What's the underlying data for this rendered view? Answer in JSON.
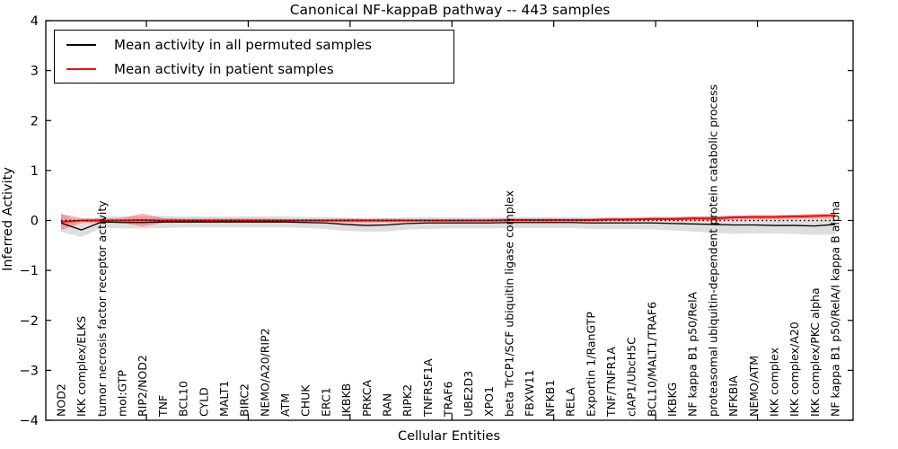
{
  "title": "Canonical NF-kappaB pathway -- 443 samples",
  "axes": {
    "xlabel": "Cellular Entities",
    "ylabel": "Inferred Activity"
  },
  "legend": {
    "entries": [
      {
        "label": "Mean activity in all permuted samples",
        "color": "#000000"
      },
      {
        "label": "Mean activity in patient samples",
        "color": "#ff0000"
      }
    ]
  },
  "colors": {
    "frame": "#000000",
    "background": "#ffffff",
    "permuted_line": "#000000",
    "patient_line": "#ff0000",
    "permuted_band": "rgba(0,0,0,0.13)",
    "patient_band": "rgba(255,60,60,0.42)",
    "zero_line": "#000000"
  },
  "chart_data": {
    "type": "line",
    "title": "Canonical NF-kappaB pathway -- 443 samples",
    "xlabel": "Cellular Entities",
    "ylabel": "Inferred Activity",
    "ylim": [
      -4,
      4
    ],
    "yticks": [
      "4",
      "3",
      "2",
      "1",
      "0",
      "−1",
      "−2",
      "−3",
      "−4"
    ],
    "ytick_values": [
      4,
      3,
      2,
      1,
      0,
      -1,
      -2,
      -3,
      -4
    ],
    "grid": false,
    "legend_position": "upper left",
    "zero_line": {
      "y": 0,
      "style": "dotted",
      "color": "#000000"
    },
    "categories": [
      "NOD2",
      "IKK complex/ELKS",
      "tumor necrosis factor receptor activity",
      "mol:GTP",
      "RIP2/NOD2",
      "TNF",
      "BCL10",
      "CYLD",
      "MALT1",
      "BIRC2",
      "NEMO/A20/RIP2",
      "ATM",
      "CHUK",
      "ERC1",
      "IKBKB",
      "PRKCA",
      "RAN",
      "RIPK2",
      "TNFRSF1A",
      "TRAF6",
      "UBE2D3",
      "XPO1",
      "beta TrCP1/SCF ubiquitin ligase complex",
      "FBXW11",
      "NFKB1",
      "RELA",
      "Exportin 1/RanGTP",
      "TNF/TNFR1A",
      "cIAP1/UbcH5C",
      "BCL10/MALT1/TRAF6",
      "IKBKG",
      "NF kappa B1 p50/RelA",
      "proteasomal ubiquitin-dependent protein catabolic process",
      "NFKBIA",
      "NEMO/ATM",
      "IKK complex",
      "IKK complex/A20",
      "IKK complex/PKC alpha",
      "NF kappa B1 p50/RelA/I kappa B alpha"
    ],
    "series": [
      {
        "name": "Mean activity in all permuted samples",
        "color": "#000000",
        "band_color": "rgba(0,0,0,0.13)",
        "values": [
          -0.05,
          -0.19,
          -0.03,
          -0.04,
          -0.04,
          -0.03,
          -0.03,
          -0.03,
          -0.03,
          -0.03,
          -0.03,
          -0.03,
          -0.04,
          -0.05,
          -0.08,
          -0.1,
          -0.09,
          -0.06,
          -0.05,
          -0.05,
          -0.05,
          -0.05,
          -0.04,
          -0.04,
          -0.04,
          -0.04,
          -0.05,
          -0.05,
          -0.05,
          -0.05,
          -0.06,
          -0.07,
          -0.08,
          -0.09,
          -0.09,
          -0.1,
          -0.1,
          -0.11,
          -0.08
        ],
        "band_halfwidth": [
          0.18,
          0.14,
          0.12,
          0.12,
          0.12,
          0.12,
          0.11,
          0.11,
          0.11,
          0.11,
          0.11,
          0.11,
          0.11,
          0.12,
          0.13,
          0.13,
          0.13,
          0.12,
          0.12,
          0.11,
          0.11,
          0.11,
          0.11,
          0.11,
          0.11,
          0.11,
          0.12,
          0.12,
          0.12,
          0.13,
          0.14,
          0.15,
          0.17,
          0.18,
          0.17,
          0.16,
          0.17,
          0.18,
          0.2
        ]
      },
      {
        "name": "Mean activity in patient samples",
        "color": "#ff0000",
        "band_color": "rgba(255,60,60,0.42)",
        "values": [
          -0.03,
          0.0,
          0.0,
          0.0,
          0.01,
          0.0,
          0.0,
          0.0,
          0.0,
          0.0,
          0.0,
          0.0,
          0.0,
          0.0,
          0.0,
          0.0,
          0.0,
          0.0,
          0.0,
          0.0,
          0.0,
          0.0,
          0.01,
          0.01,
          0.01,
          0.01,
          0.01,
          0.02,
          0.02,
          0.03,
          0.03,
          0.04,
          0.04,
          0.06,
          0.07,
          0.07,
          0.08,
          0.09,
          0.1
        ],
        "band_halfwidth": [
          0.16,
          0.05,
          0.04,
          0.05,
          0.13,
          0.05,
          0.04,
          0.04,
          0.04,
          0.04,
          0.04,
          0.03,
          0.03,
          0.03,
          0.04,
          0.04,
          0.04,
          0.03,
          0.03,
          0.03,
          0.03,
          0.03,
          0.03,
          0.03,
          0.03,
          0.03,
          0.03,
          0.03,
          0.03,
          0.03,
          0.03,
          0.04,
          0.04,
          0.04,
          0.04,
          0.04,
          0.04,
          0.04,
          0.04
        ]
      }
    ]
  }
}
